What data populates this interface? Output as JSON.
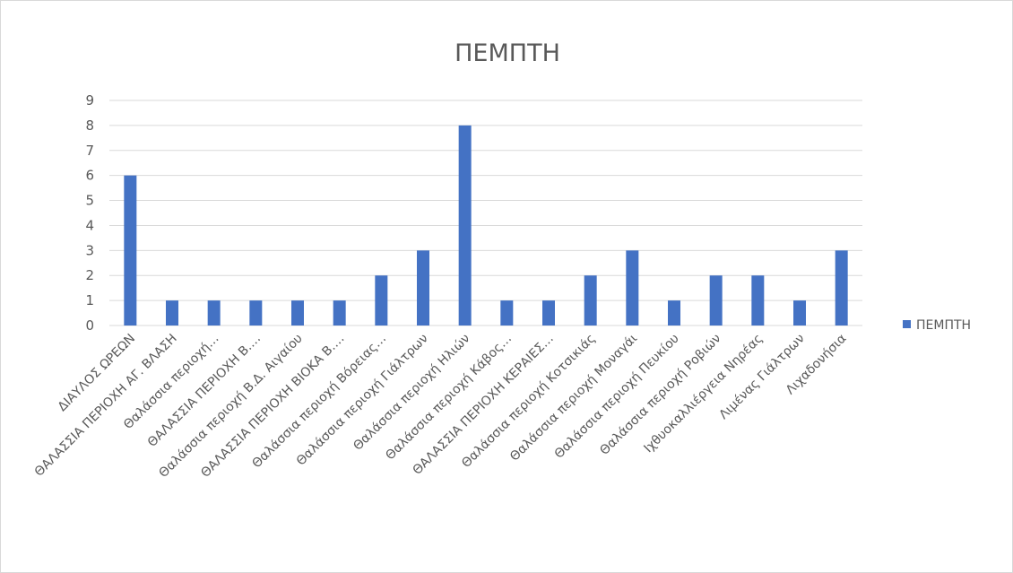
{
  "chart_data": {
    "type": "bar",
    "title": "ΠΕΜΠΤΗ",
    "ylim": [
      0,
      9
    ],
    "yticks": [
      0,
      1,
      2,
      3,
      4,
      5,
      6,
      7,
      8,
      9
    ],
    "grid": true,
    "legend_position": "right",
    "bar_color": "#4472c4",
    "categories": [
      "ΔΙΑΥΛΟΣ ΩΡΕΩΝ",
      "ΘΑΛΑΣΣΙΑ ΠΕΡΙΟΧΗ ΑΓ. ΒΛΑΣΗ",
      "Θαλάσσια περιοχή…",
      "ΘΑΛΑΣΣΙΑ ΠΕΡΙΟΧΗ Β.…",
      "Θαλάσσια περιοχή Β.Δ. Αιγαίου",
      "ΘΑΛΑΣΣΙΑ ΠΕΡΙΟΧΗ ΒΙΟΚΑ Β.…",
      "Θαλάσσια περιοχή Βόρειας…",
      "Θαλάσσια περιοχή Γιάλτρων",
      "Θαλάσσια περιοχή Ηλιών",
      "Θαλάσσια περιοχή Κάβος…",
      "ΘΑΛΑΣΣΙΑ ΠΕΡΙΟΧΗ ΚΕΡΑΙΕΣ…",
      "Θαλάσσια περιοχή Κοτσικιάς",
      "Θαλάσσια περιοχή Μοναγάι",
      "Θαλάσσια περιοχή Πευκίου",
      "Θαλάσσια περιοχή Ροβιών",
      "Ιχθυοκαλλιέργεια Νηρέας",
      "Λιμένας Γιάλτρων",
      "Λιχαδονήσια"
    ],
    "series": [
      {
        "name": "ΠΕΜΠΤΗ",
        "values": [
          6,
          1,
          1,
          1,
          1,
          1,
          2,
          3,
          8,
          1,
          1,
          2,
          3,
          1,
          2,
          2,
          1,
          3
        ]
      }
    ]
  }
}
